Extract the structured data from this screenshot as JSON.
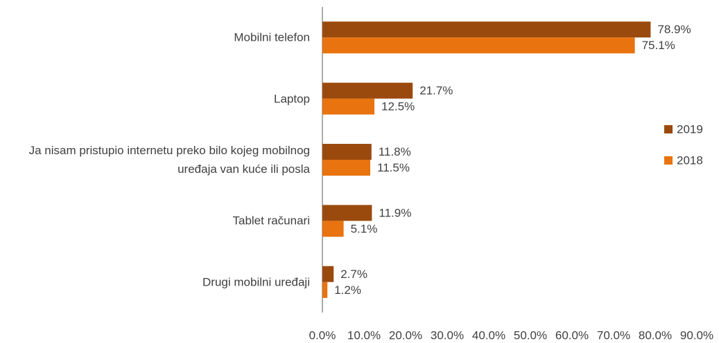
{
  "chart_data": {
    "type": "hbar",
    "categories": [
      "Mobilni telefon",
      "Laptop",
      "Ja nisam pristupio internetu preko bilo kojeg mobilnog uređaja van kuće ili posla",
      "Tablet računari",
      "Drugi mobilni uređaji"
    ],
    "series": [
      {
        "name": "2019",
        "color": "#9a4a0d",
        "values": [
          78.9,
          21.7,
          11.8,
          11.9,
          2.7
        ],
        "value_labels": [
          "78.9%",
          "21.7%",
          "11.8%",
          "11.9%",
          "2.7%"
        ]
      },
      {
        "name": "2018",
        "color": "#e8730f",
        "values": [
          75.1,
          12.5,
          11.5,
          5.1,
          1.2
        ],
        "value_labels": [
          "75.1%",
          "12.5%",
          "11.5%",
          "5.1%",
          "1.2%"
        ]
      }
    ],
    "xlim": [
      0,
      90
    ],
    "xticks": [
      {
        "value": 0,
        "label": "0.0%"
      },
      {
        "value": 10,
        "label": "10.0%"
      },
      {
        "value": 20,
        "label": "20.0%"
      },
      {
        "value": 30,
        "label": "30.0%"
      },
      {
        "value": 40,
        "label": "40.0%"
      },
      {
        "value": 50,
        "label": "50.0%"
      },
      {
        "value": 60,
        "label": "60.0%"
      },
      {
        "value": 70,
        "label": "70.0%"
      },
      {
        "value": 80,
        "label": "80.0%"
      },
      {
        "value": 90,
        "label": "90.0%"
      }
    ],
    "legend": "right"
  }
}
